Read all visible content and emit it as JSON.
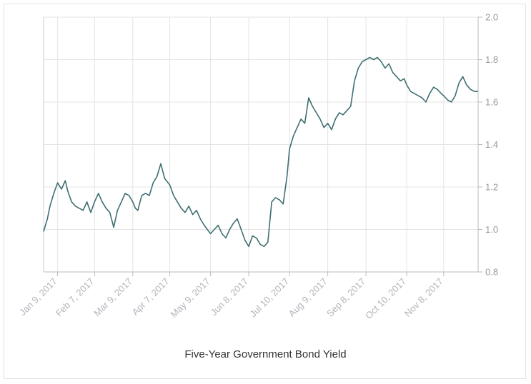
{
  "chart_data": {
    "type": "line",
    "title": "Five-Year Government Bond Yield",
    "xlabel": "",
    "ylabel": "",
    "ylim": [
      0.8,
      2.0
    ],
    "yticks": [
      0.8,
      1.0,
      1.2,
      1.4,
      1.6,
      1.8,
      2.0
    ],
    "xlim": [
      "2016-12-29",
      "2017-12-05"
    ],
    "xticks": [
      {
        "date": "2017-01-09",
        "label": "Jan 9, 2017"
      },
      {
        "date": "2017-02-07",
        "label": "Feb 7, 2017"
      },
      {
        "date": "2017-03-09",
        "label": "Mar 9, 2017"
      },
      {
        "date": "2017-04-07",
        "label": "Apr 7, 2017"
      },
      {
        "date": "2017-05-09",
        "label": "May 9, 2017"
      },
      {
        "date": "2017-06-08",
        "label": "Jun 8, 2017"
      },
      {
        "date": "2017-07-10",
        "label": "Jul 10, 2017"
      },
      {
        "date": "2017-08-09",
        "label": "Aug 9, 2017"
      },
      {
        "date": "2017-09-08",
        "label": "Sep 8, 2017"
      },
      {
        "date": "2017-10-10",
        "label": "Oct 10, 2017"
      },
      {
        "date": "2017-11-08",
        "label": "Nov 8, 2017"
      }
    ],
    "grid": true,
    "line_color": "#3f6f72",
    "series": [
      {
        "name": "",
        "x": [
          "2016-12-29",
          "2017-01-01",
          "2017-01-03",
          "2017-01-06",
          "2017-01-09",
          "2017-01-12",
          "2017-01-15",
          "2017-01-17",
          "2017-01-20",
          "2017-01-23",
          "2017-01-26",
          "2017-01-29",
          "2017-02-01",
          "2017-02-04",
          "2017-02-07",
          "2017-02-10",
          "2017-02-13",
          "2017-02-16",
          "2017-02-19",
          "2017-02-22",
          "2017-02-25",
          "2017-02-28",
          "2017-03-03",
          "2017-03-06",
          "2017-03-09",
          "2017-03-11",
          "2017-03-13",
          "2017-03-16",
          "2017-03-19",
          "2017-03-22",
          "2017-03-25",
          "2017-03-28",
          "2017-03-31",
          "2017-04-03",
          "2017-04-07",
          "2017-04-10",
          "2017-04-13",
          "2017-04-16",
          "2017-04-19",
          "2017-04-22",
          "2017-04-25",
          "2017-04-28",
          "2017-05-01",
          "2017-05-04",
          "2017-05-09",
          "2017-05-12",
          "2017-05-15",
          "2017-05-18",
          "2017-05-21",
          "2017-05-24",
          "2017-05-27",
          "2017-05-30",
          "2017-06-02",
          "2017-06-05",
          "2017-06-08",
          "2017-06-11",
          "2017-06-14",
          "2017-06-17",
          "2017-06-20",
          "2017-06-23",
          "2017-06-26",
          "2017-06-29",
          "2017-07-02",
          "2017-07-05",
          "2017-07-08",
          "2017-07-10",
          "2017-07-13",
          "2017-07-16",
          "2017-07-19",
          "2017-07-22",
          "2017-07-25",
          "2017-07-28",
          "2017-07-31",
          "2017-08-03",
          "2017-08-06",
          "2017-08-09",
          "2017-08-12",
          "2017-08-15",
          "2017-08-18",
          "2017-08-21",
          "2017-08-24",
          "2017-08-27",
          "2017-08-30",
          "2017-09-02",
          "2017-09-05",
          "2017-09-08",
          "2017-09-11",
          "2017-09-14",
          "2017-09-17",
          "2017-09-20",
          "2017-09-23",
          "2017-09-26",
          "2017-09-29",
          "2017-10-02",
          "2017-10-05",
          "2017-10-08",
          "2017-10-10",
          "2017-10-13",
          "2017-10-16",
          "2017-10-19",
          "2017-10-22",
          "2017-10-25",
          "2017-10-28",
          "2017-10-31",
          "2017-11-03",
          "2017-11-06",
          "2017-11-08",
          "2017-11-11",
          "2017-11-14",
          "2017-11-17",
          "2017-11-20",
          "2017-11-23",
          "2017-11-26",
          "2017-11-29",
          "2017-12-02",
          "2017-12-05"
        ],
        "values": [
          0.99,
          1.05,
          1.11,
          1.17,
          1.22,
          1.19,
          1.23,
          1.18,
          1.13,
          1.11,
          1.1,
          1.09,
          1.13,
          1.08,
          1.13,
          1.17,
          1.13,
          1.1,
          1.08,
          1.01,
          1.09,
          1.13,
          1.17,
          1.16,
          1.13,
          1.1,
          1.09,
          1.16,
          1.17,
          1.16,
          1.22,
          1.25,
          1.31,
          1.24,
          1.21,
          1.16,
          1.13,
          1.1,
          1.08,
          1.11,
          1.07,
          1.09,
          1.05,
          1.02,
          0.98,
          1.0,
          1.02,
          0.98,
          0.96,
          1.0,
          1.03,
          1.05,
          1.0,
          0.95,
          0.92,
          0.97,
          0.96,
          0.93,
          0.92,
          0.94,
          1.13,
          1.15,
          1.14,
          1.12,
          1.25,
          1.38,
          1.44,
          1.48,
          1.52,
          1.5,
          1.62,
          1.58,
          1.55,
          1.52,
          1.48,
          1.5,
          1.47,
          1.52,
          1.55,
          1.54,
          1.56,
          1.58,
          1.7,
          1.76,
          1.79,
          1.8,
          1.81,
          1.8,
          1.81,
          1.79,
          1.76,
          1.78,
          1.74,
          1.72,
          1.7,
          1.71,
          1.68,
          1.65,
          1.64,
          1.63,
          1.62,
          1.6,
          1.64,
          1.67,
          1.66,
          1.64,
          1.63,
          1.61,
          1.6,
          1.63,
          1.69,
          1.72,
          1.68,
          1.66,
          1.65,
          1.65
        ]
      }
    ]
  }
}
